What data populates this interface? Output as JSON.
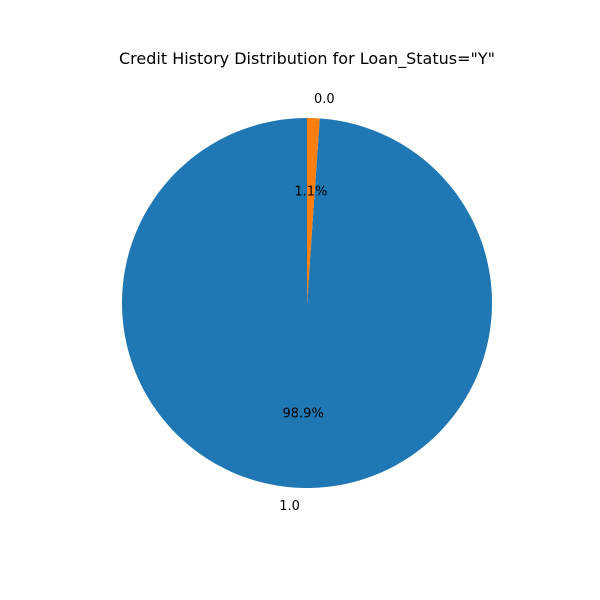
{
  "chart_data": {
    "type": "pie",
    "title": "Credit History Distribution for Loan_Status=\"Y\"",
    "slices": [
      {
        "label": "1.0",
        "value": 98.9,
        "pct_label": "98.9%",
        "color": "#1f77b4"
      },
      {
        "label": "0.0",
        "value": 1.1,
        "pct_label": "1.1%",
        "color": "#ff7f0e"
      }
    ],
    "start_angle_deg": 90,
    "direction": "counterclockwise"
  }
}
